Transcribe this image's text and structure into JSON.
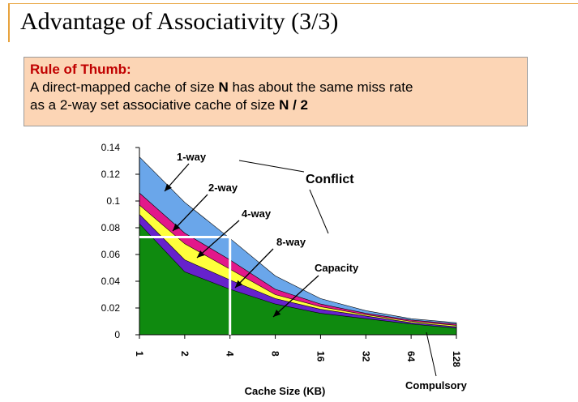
{
  "slide": {
    "title": "Advantage of Associativity (3/3)",
    "accent_color": "#e8a33d"
  },
  "rule": {
    "heading": "Rule of Thumb:",
    "line1_pre": "A direct-mapped cache of size ",
    "line1_bold": "N",
    "line1_post": " has about the same miss rate",
    "line2_pre": "as a 2-way set associative cache of size ",
    "line2_bold": "N / 2",
    "bg_color": "#fcd5b5"
  },
  "chart_data": {
    "type": "area",
    "x": [
      "1",
      "2",
      "4",
      "8",
      "16",
      "32",
      "64",
      "128"
    ],
    "xlabel": "Cache Size (KB)",
    "ylabel": "",
    "ylim": [
      0,
      0.14
    ],
    "yticks": [
      "0",
      "0.02",
      "0.04",
      "0.06",
      "0.08",
      "0.1",
      "0.12",
      "0.14"
    ],
    "series": [
      {
        "name": "1-way",
        "color": "#6aa6ea",
        "values": [
          0.133,
          0.099,
          0.072,
          0.044,
          0.027,
          0.018,
          0.012,
          0.009
        ]
      },
      {
        "name": "2-way",
        "color": "#e2188a",
        "values": [
          0.106,
          0.076,
          0.056,
          0.034,
          0.023,
          0.016,
          0.011,
          0.008
        ]
      },
      {
        "name": "4-way",
        "color": "#ffff3c",
        "values": [
          0.097,
          0.068,
          0.049,
          0.03,
          0.021,
          0.015,
          0.01,
          0.007
        ]
      },
      {
        "name": "8-way",
        "color": "#6622cc",
        "values": [
          0.09,
          0.056,
          0.041,
          0.027,
          0.019,
          0.014,
          0.009,
          0.006
        ]
      },
      {
        "name": "Capacity",
        "color": "#0f8a0f",
        "values": [
          0.083,
          0.047,
          0.034,
          0.023,
          0.016,
          0.012,
          0.008,
          0.005
        ]
      }
    ],
    "annotations": {
      "one_way": "1-way",
      "two_way": "2-way",
      "four_way": "4-way",
      "eight_way": "8-way",
      "conflict": "Conflict",
      "capacity": "Capacity",
      "compulsory": "Compulsory"
    },
    "reference_line": {
      "y": 0.073,
      "x_from": "1",
      "x_to": "4"
    }
  }
}
